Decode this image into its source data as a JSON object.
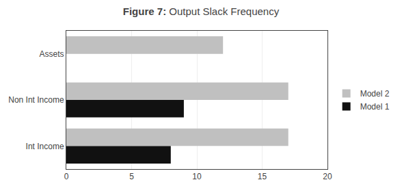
{
  "chart_data": {
    "type": "bar",
    "orientation": "horizontal",
    "title": "Figure 7: Output Slack Frequency",
    "categories": [
      "Int Income",
      "Non Int Income",
      "Assets"
    ],
    "series": [
      {
        "name": "Model 2",
        "color": "#c0c0c0",
        "values": [
          17.0,
          17.0,
          12.0
        ]
      },
      {
        "name": "Model 1",
        "color": "#111111",
        "values": [
          8.0,
          9.0,
          0.0
        ]
      }
    ],
    "xlim": [
      0,
      20
    ],
    "xticks": [
      0,
      5,
      10,
      15,
      20
    ],
    "grid": true,
    "legend": "right"
  }
}
